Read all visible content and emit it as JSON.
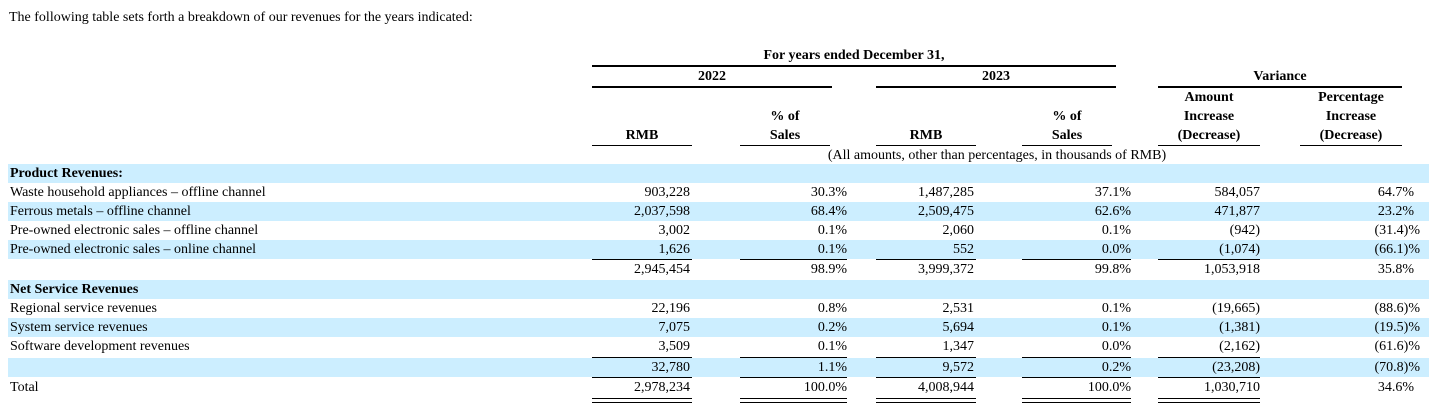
{
  "intro": "The following table sets forth a breakdown of our revenues for the years indicated:",
  "header": {
    "period": "For years ended December 31,",
    "year1": "2022",
    "year2": "2023",
    "variance": "Variance",
    "rmb": "RMB",
    "pct_line1": "% of",
    "pct_line2": "Sales",
    "amt_line1": "Amount",
    "amt_line2": "Increase",
    "amt_line3": "(Decrease)",
    "pctinc_line1": "Percentage",
    "pctinc_line2": "Increase",
    "pctinc_line3": "(Decrease)",
    "note": "(All amounts, other than percentages, in thousands of RMB)"
  },
  "sections": {
    "product": {
      "title": "Product Revenues:",
      "rows": [
        {
          "label": "Waste household appliances – offline channel",
          "rmb22": "903,228",
          "pct22": "30.3%",
          "rmb23": "1,487,285",
          "pct23": "37.1%",
          "amt": "584,057",
          "pctinc": "64.7%"
        },
        {
          "label": "Ferrous metals – offline channel",
          "rmb22": "2,037,598",
          "pct22": "68.4%",
          "rmb23": "2,509,475",
          "pct23": "62.6%",
          "amt": "471,877",
          "pctinc": "23.2%"
        },
        {
          "label": "Pre-owned electronic sales – offline channel",
          "rmb22": "3,002",
          "pct22": "0.1%",
          "rmb23": "2,060",
          "pct23": "0.1%",
          "amt": "(942)",
          "pctinc": "(31.4)%"
        },
        {
          "label": "Pre-owned electronic sales – online channel",
          "rmb22": "1,626",
          "pct22": "0.1%",
          "rmb23": "552",
          "pct23": "0.0%",
          "amt": "(1,074)",
          "pctinc": "(66.1)%"
        }
      ],
      "subtotal": {
        "rmb22": "2,945,454",
        "pct22": "98.9%",
        "rmb23": "3,999,372",
        "pct23": "99.8%",
        "amt": "1,053,918",
        "pctinc": "35.8%"
      }
    },
    "service": {
      "title": "Net Service Revenues",
      "rows": [
        {
          "label": "Regional service revenues",
          "rmb22": "22,196",
          "pct22": "0.8%",
          "rmb23": "2,531",
          "pct23": "0.1%",
          "amt": "(19,665)",
          "pctinc": "(88.6)%"
        },
        {
          "label": "System service revenues",
          "rmb22": "7,075",
          "pct22": "0.2%",
          "rmb23": "5,694",
          "pct23": "0.1%",
          "amt": "(1,381)",
          "pctinc": "(19.5)%"
        },
        {
          "label": "Software development revenues",
          "rmb22": "3,509",
          "pct22": "0.1%",
          "rmb23": "1,347",
          "pct23": "0.0%",
          "amt": "(2,162)",
          "pctinc": "(61.6)%"
        }
      ],
      "subtotal": {
        "rmb22": "32,780",
        "pct22": "1.1%",
        "rmb23": "9,572",
        "pct23": "0.2%",
        "amt": "(23,208)",
        "pctinc": "(70.8)%"
      }
    }
  },
  "total": {
    "label": "Total",
    "rmb22": "2,978,234",
    "pct22": "100.0%",
    "rmb23": "4,008,944",
    "pct23": "100.0%",
    "amt": "1,030,710",
    "pctinc": "34.6%"
  }
}
